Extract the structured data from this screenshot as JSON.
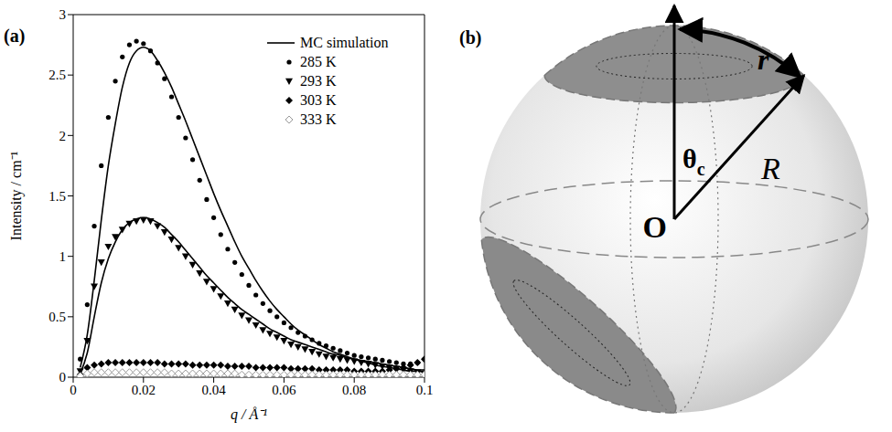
{
  "chart_data": {
    "type": "scatter",
    "panel": "(a)",
    "x_label": "q / Å⁻¹",
    "y_label": "Intensity / cm⁻¹",
    "legend": "upper right",
    "xlim": [
      0,
      0.1
    ],
    "xticks": [
      0,
      0.02,
      0.04,
      0.06,
      0.08,
      0.1
    ],
    "ylim": [
      0,
      3
    ],
    "yticks": [
      0,
      0.5,
      1,
      1.5,
      2,
      2.5,
      3
    ],
    "x": [
      0.002,
      0.004,
      0.006,
      0.008,
      0.01,
      0.012,
      0.014,
      0.016,
      0.018,
      0.02,
      0.022,
      0.024,
      0.026,
      0.028,
      0.03,
      0.032,
      0.034,
      0.036,
      0.038,
      0.04,
      0.042,
      0.044,
      0.046,
      0.048,
      0.05,
      0.052,
      0.054,
      0.056,
      0.058,
      0.06,
      0.062,
      0.064,
      0.066,
      0.068,
      0.07,
      0.072,
      0.074,
      0.076,
      0.078,
      0.08,
      0.082,
      0.084,
      0.086,
      0.088,
      0.09,
      0.092,
      0.094,
      0.096,
      0.098,
      0.1
    ],
    "series": [
      {
        "name": "MC simulation",
        "type": "line",
        "color": "#000000",
        "line_style": "solid",
        "values": [
          0.08,
          0.35,
          0.8,
          1.3,
          1.75,
          2.1,
          2.4,
          2.6,
          2.7,
          2.73,
          2.7,
          2.62,
          2.52,
          2.4,
          2.26,
          2.12,
          1.97,
          1.82,
          1.67,
          1.52,
          1.38,
          1.25,
          1.12,
          1.0,
          0.9,
          0.8,
          0.71,
          0.63,
          0.56,
          0.5,
          0.44,
          0.39,
          0.35,
          0.31,
          0.27,
          0.24,
          0.21,
          0.19,
          0.17,
          0.15,
          0.13,
          0.12,
          0.1,
          0.09,
          0.08,
          0.07,
          0.06,
          0.05,
          0.05,
          0.04
        ]
      },
      {
        "name": "MC simulation",
        "type": "line",
        "color": "#000000",
        "line_style": "solid",
        "values": [
          0.03,
          0.2,
          0.5,
          0.78,
          0.98,
          1.12,
          1.22,
          1.28,
          1.31,
          1.32,
          1.31,
          1.28,
          1.24,
          1.18,
          1.12,
          1.05,
          0.98,
          0.91,
          0.84,
          0.78,
          0.72,
          0.66,
          0.61,
          0.56,
          0.52,
          0.48,
          0.44,
          0.4,
          0.37,
          0.34,
          0.31,
          0.29,
          0.27,
          0.25,
          0.23,
          0.21,
          0.19,
          0.18,
          0.16,
          0.15,
          0.14,
          0.13,
          0.12,
          0.11,
          0.1,
          0.09,
          0.08,
          0.07,
          0.06,
          0.06
        ]
      },
      {
        "name": "285 K",
        "type": "scatter",
        "marker": "circle",
        "color": "#000000",
        "values": [
          0.15,
          0.6,
          1.25,
          1.75,
          2.15,
          2.45,
          2.65,
          2.75,
          2.78,
          2.76,
          2.7,
          2.6,
          2.47,
          2.32,
          2.15,
          1.98,
          1.8,
          1.63,
          1.47,
          1.32,
          1.18,
          1.06,
          0.95,
          0.85,
          0.76,
          0.68,
          0.61,
          0.55,
          0.5,
          0.45,
          0.41,
          0.37,
          0.34,
          0.31,
          0.28,
          0.26,
          0.24,
          0.22,
          0.2,
          0.18,
          0.17,
          0.16,
          0.15,
          0.14,
          0.13,
          0.12,
          0.11,
          0.11,
          0.12,
          0.15
        ]
      },
      {
        "name": "293 K",
        "type": "scatter",
        "marker": "triangle_down",
        "color": "#000000",
        "values": [
          0.05,
          0.3,
          0.75,
          0.95,
          1.08,
          1.16,
          1.22,
          1.27,
          1.29,
          1.3,
          1.29,
          1.25,
          1.2,
          1.14,
          1.07,
          1.0,
          0.93,
          0.86,
          0.79,
          0.73,
          0.67,
          0.61,
          0.56,
          0.51,
          0.47,
          0.43,
          0.39,
          0.36,
          0.33,
          0.3,
          0.27,
          0.25,
          0.23,
          0.21,
          0.19,
          0.17,
          0.16,
          0.15,
          0.14,
          0.13,
          0.12,
          0.11,
          0.1,
          0.09,
          0.08,
          0.07,
          0.06,
          0.05,
          0.04,
          0.03
        ]
      },
      {
        "name": "303 K",
        "type": "scatter",
        "marker": "diamond",
        "color": "#000000",
        "values": [
          0.02,
          0.08,
          0.1,
          0.11,
          0.12,
          0.12,
          0.12,
          0.12,
          0.12,
          0.12,
          0.12,
          0.12,
          0.11,
          0.11,
          0.11,
          0.11,
          0.1,
          0.1,
          0.1,
          0.1,
          0.1,
          0.09,
          0.09,
          0.09,
          0.09,
          0.08,
          0.08,
          0.08,
          0.08,
          0.08,
          0.07,
          0.07,
          0.07,
          0.07,
          0.06,
          0.06,
          0.06,
          0.06,
          0.06,
          0.05,
          0.05,
          0.05,
          0.05,
          0.05,
          0.06,
          0.07,
          0.08,
          0.1,
          0.12,
          0.15
        ]
      },
      {
        "name": "333 K",
        "type": "scatter",
        "marker": "open_diamond",
        "color": "#999999",
        "values": [
          0.01,
          0.03,
          0.04,
          0.04,
          0.04,
          0.04,
          0.04,
          0.04,
          0.04,
          0.04,
          0.04,
          0.04,
          0.04,
          0.03,
          0.03,
          0.03,
          0.03,
          0.03,
          0.03,
          0.03,
          0.03,
          0.03,
          0.03,
          0.02,
          0.02,
          0.02,
          0.02,
          0.02,
          0.02,
          0.02,
          0.02,
          0.02,
          0.02,
          0.02,
          0.02,
          0.02,
          0.02,
          0.02,
          0.02,
          0.02,
          0.02,
          0.02,
          0.02,
          0.02,
          0.02,
          0.02,
          0.02,
          0.02,
          0.02,
          0.02
        ]
      }
    ]
  },
  "diagram": {
    "panel": "(b)",
    "labels": {
      "arc": "r",
      "angle": "θc",
      "origin": "O",
      "radius": "R"
    }
  }
}
